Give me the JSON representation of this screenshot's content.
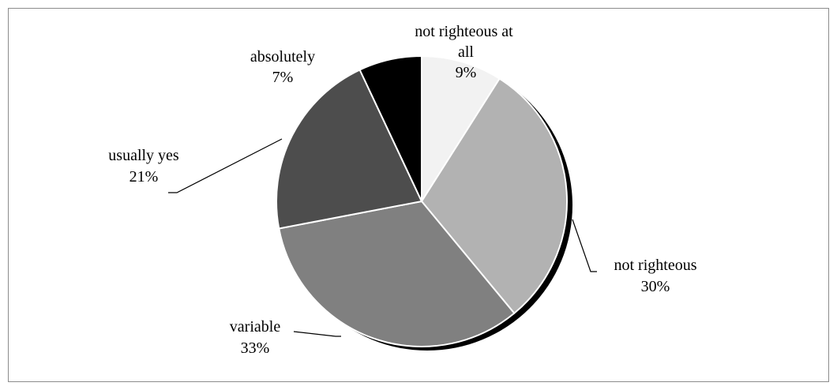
{
  "chart_data": {
    "type": "pie",
    "title": "",
    "slices": [
      {
        "name": "not righteous at all",
        "value": 9,
        "percent_label": "9%",
        "color": "#f2f2f2"
      },
      {
        "name": "not righteous",
        "value": 30,
        "percent_label": "30%",
        "color": "#b2b2b2"
      },
      {
        "name": "variable",
        "value": 33,
        "percent_label": "33%",
        "color": "#808080"
      },
      {
        "name": "usually yes",
        "value": 21,
        "percent_label": "21%",
        "color": "#4d4d4d"
      },
      {
        "name": "absolutely",
        "value": 7,
        "percent_label": "7%",
        "color": "#000000"
      }
    ],
    "start_angle": "12 o'clock",
    "direction": "clockwise",
    "shadow": true,
    "legend": "none"
  }
}
